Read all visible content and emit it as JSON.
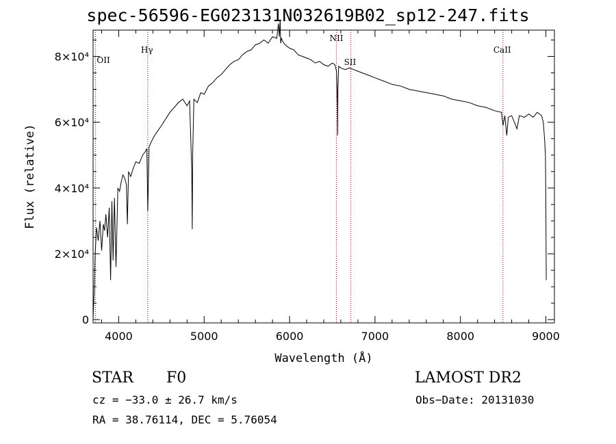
{
  "chart_data": {
    "type": "line",
    "title": "spec-56596-EG023131N032619B02_sp12-247.fits",
    "xlabel": "Wavelength (Å)",
    "ylabel": "Flux (relative)",
    "xlim": [
      3700,
      9100
    ],
    "ylim": [
      -1000,
      88000
    ],
    "x_ticks": [
      4000,
      5000,
      6000,
      7000,
      8000,
      9000
    ],
    "y_ticks": [
      {
        "value": 0,
        "label": "0"
      },
      {
        "value": 20000,
        "label": "2×10⁴"
      },
      {
        "value": 40000,
        "label": "4×10⁴"
      },
      {
        "value": 60000,
        "label": "6×10⁴"
      },
      {
        "value": 80000,
        "label": "8×10⁴"
      }
    ],
    "grid": false,
    "line_color": "#000000",
    "marker_color": "#8b0000",
    "reference_lines": [
      {
        "label": "OII",
        "x": 3727
      },
      {
        "label": "Hγ",
        "x": 4340
      },
      {
        "label": "NII",
        "x": 6548
      },
      {
        "label": "SII",
        "x": 6717
      },
      {
        "label": "CaII",
        "x": 8498
      }
    ],
    "series": [
      {
        "x": [
          3700,
          3712,
          3725,
          3740,
          3760,
          3780,
          3800,
          3820,
          3835,
          3850,
          3870,
          3889,
          3905,
          3920,
          3934,
          3950,
          3968,
          3990,
          4010,
          4030,
          4050,
          4070,
          4090,
          4101,
          4115,
          4140,
          4170,
          4200,
          4240,
          4280,
          4310,
          4330,
          4340,
          4355,
          4380,
          4420,
          4460,
          4500,
          4550,
          4600,
          4650,
          4700,
          4750,
          4800,
          4830,
          4855,
          4861,
          4866,
          4880,
          4920,
          4960,
          5000,
          5050,
          5100,
          5150,
          5200,
          5250,
          5300,
          5350,
          5400,
          5450,
          5500,
          5550,
          5600,
          5650,
          5700,
          5750,
          5800,
          5850,
          5870,
          5880,
          5890,
          5896,
          5905,
          5920,
          5950,
          6000,
          6050,
          6100,
          6150,
          6200,
          6250,
          6300,
          6350,
          6400,
          6450,
          6500,
          6530,
          6550,
          6560,
          6563,
          6566,
          6575,
          6600,
          6650,
          6700,
          6750,
          6800,
          6900,
          7000,
          7100,
          7200,
          7300,
          7400,
          7500,
          7600,
          7700,
          7800,
          7900,
          8000,
          8100,
          8200,
          8300,
          8400,
          8480,
          8498,
          8520,
          8542,
          8560,
          8600,
          8662,
          8690,
          8750,
          8800,
          8850,
          8900,
          8950,
          8970,
          8985,
          8995,
          9000,
          9005
        ],
        "y": [
          500,
          8000,
          20000,
          28000,
          24000,
          30000,
          21000,
          29000,
          27000,
          32000,
          25000,
          34000,
          12000,
          36000,
          18000,
          37000,
          16000,
          40000,
          39000,
          42000,
          44000,
          43000,
          41000,
          29000,
          45000,
          43500,
          46000,
          48000,
          47500,
          50000,
          51000,
          52000,
          33000,
          52500,
          54000,
          56000,
          57500,
          59000,
          61000,
          63000,
          64500,
          66000,
          67000,
          65000,
          66500,
          45000,
          27500,
          50000,
          67000,
          66000,
          69000,
          68500,
          71000,
          72000,
          73500,
          74500,
          76000,
          77500,
          78500,
          79000,
          80500,
          81500,
          82000,
          83500,
          84000,
          85000,
          84000,
          86000,
          85500,
          90000,
          86000,
          91000,
          84000,
          85500,
          84500,
          83500,
          82500,
          82000,
          80500,
          80000,
          79500,
          79000,
          78000,
          78500,
          77500,
          77000,
          78000,
          77500,
          75500,
          65000,
          56000,
          70000,
          77000,
          76500,
          76000,
          76500,
          76000,
          75500,
          74500,
          73500,
          72500,
          71500,
          71000,
          70000,
          69500,
          69000,
          68500,
          68000,
          67000,
          66500,
          66000,
          65000,
          64500,
          63500,
          63000,
          59000,
          62000,
          56000,
          61500,
          62000,
          58000,
          62000,
          61500,
          62500,
          61500,
          63000,
          62000,
          60000,
          55000,
          50000,
          35000,
          12000
        ]
      }
    ]
  },
  "info": {
    "object_class": "STAR",
    "subclass": "F0",
    "survey": "LAMOST DR2",
    "redshift": "cz = −33.0 ± 26.7 km/s",
    "obs_date": "Obs−Date: 20131030",
    "coords": "RA =  38.76114, DEC =   5.76054"
  }
}
